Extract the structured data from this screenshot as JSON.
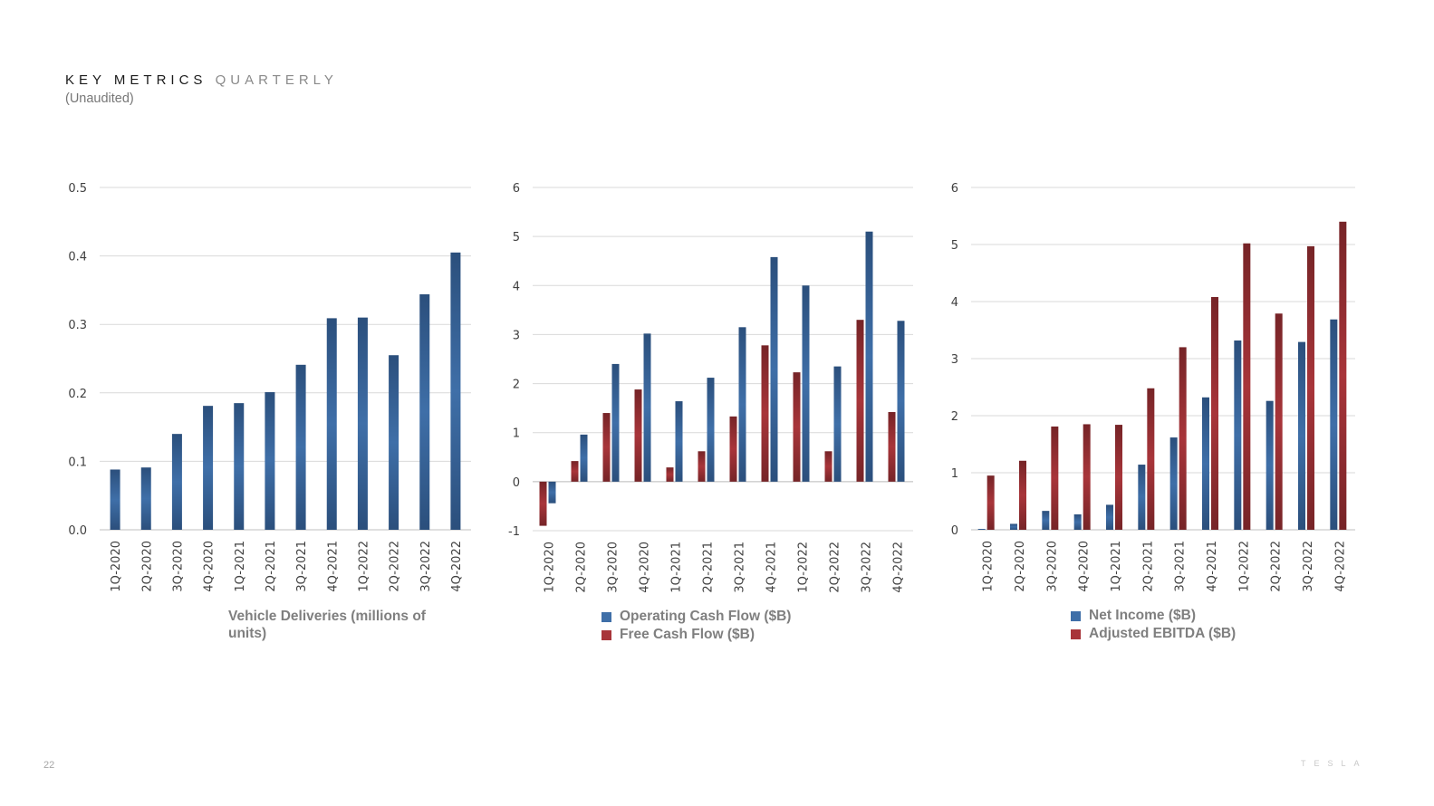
{
  "header": {
    "title_main": "KEY METRICS",
    "title_sub": "QUARTERLY",
    "subtitle": "(Unaudited)"
  },
  "footer": {
    "page_number": "22",
    "logo_text": "TESLA"
  },
  "colors": {
    "blue": "#3f6fa8",
    "blue_dark": "#2b4f7c",
    "red": "#a8353a",
    "red_dark": "#762427",
    "grid": "#d9d9d9",
    "tick": "#404040"
  },
  "chart_data": [
    {
      "type": "bar",
      "title": "Vehicle Deliveries (millions of units)",
      "categories": [
        "1Q-2020",
        "2Q-2020",
        "3Q-2020",
        "4Q-2020",
        "1Q-2021",
        "2Q-2021",
        "3Q-2021",
        "4Q-2021",
        "1Q-2022",
        "2Q-2022",
        "3Q-2022",
        "4Q-2022"
      ],
      "series": [
        {
          "name": "Vehicle Deliveries (millions of units)",
          "color": "blue",
          "values": [
            0.088,
            0.091,
            0.14,
            0.181,
            0.185,
            0.201,
            0.241,
            0.309,
            0.31,
            0.255,
            0.344,
            0.405
          ]
        }
      ],
      "ylim": [
        0,
        0.5
      ],
      "yticks": [
        0.0,
        0.1,
        0.2,
        0.3,
        0.4,
        0.5
      ],
      "ytick_labels": [
        "0.0",
        "0.1",
        "0.2",
        "0.3",
        "0.4",
        "0.5"
      ],
      "grid": true,
      "legend": "none"
    },
    {
      "type": "bar",
      "title": "",
      "categories": [
        "1Q-2020",
        "2Q-2020",
        "3Q-2020",
        "4Q-2020",
        "1Q-2021",
        "2Q-2021",
        "3Q-2021",
        "4Q-2021",
        "1Q-2022",
        "2Q-2022",
        "3Q-2022",
        "4Q-2022"
      ],
      "series": [
        {
          "name": "Free Cash Flow ($B)",
          "color": "red",
          "values": [
            -0.9,
            0.42,
            1.4,
            1.88,
            0.29,
            0.62,
            1.33,
            2.78,
            2.23,
            0.62,
            3.3,
            1.42
          ]
        },
        {
          "name": "Operating Cash Flow ($B)",
          "color": "blue",
          "values": [
            -0.44,
            0.96,
            2.4,
            3.02,
            1.64,
            2.12,
            3.15,
            4.58,
            4.0,
            2.35,
            5.1,
            3.28
          ]
        }
      ],
      "ylim": [
        -1,
        6
      ],
      "yticks": [
        -1,
        0,
        1,
        2,
        3,
        4,
        5,
        6
      ],
      "ytick_labels": [
        "-1",
        "0",
        "1",
        "2",
        "3",
        "4",
        "5",
        "6"
      ],
      "grid": true,
      "legend": "bottom",
      "legend_entries": [
        {
          "label": "Operating Cash Flow ($B)",
          "color": "blue"
        },
        {
          "label": "Free Cash Flow ($B)",
          "color": "red"
        }
      ]
    },
    {
      "type": "bar",
      "title": "",
      "categories": [
        "1Q-2020",
        "2Q-2020",
        "3Q-2020",
        "4Q-2020",
        "1Q-2021",
        "2Q-2021",
        "3Q-2021",
        "4Q-2021",
        "1Q-2022",
        "2Q-2022",
        "3Q-2022",
        "4Q-2022"
      ],
      "series": [
        {
          "name": "Net Income ($B)",
          "color": "blue",
          "values": [
            0.016,
            0.104,
            0.331,
            0.27,
            0.438,
            1.142,
            1.618,
            2.321,
            3.318,
            2.259,
            3.292,
            3.687
          ]
        },
        {
          "name": "Adjusted EBITDA ($B)",
          "color": "red",
          "values": [
            0.95,
            1.21,
            1.81,
            1.85,
            1.84,
            2.48,
            3.2,
            4.08,
            5.02,
            3.79,
            4.97,
            5.4
          ]
        }
      ],
      "ylim": [
        0,
        6
      ],
      "yticks": [
        0,
        1,
        2,
        3,
        4,
        5,
        6
      ],
      "ytick_labels": [
        "0",
        "1",
        "2",
        "3",
        "4",
        "5",
        "6"
      ],
      "grid": true,
      "legend": "bottom",
      "legend_entries": [
        {
          "label": "Net Income ($B)",
          "color": "blue"
        },
        {
          "label": "Adjusted EBITDA ($B)",
          "color": "red"
        }
      ]
    }
  ]
}
